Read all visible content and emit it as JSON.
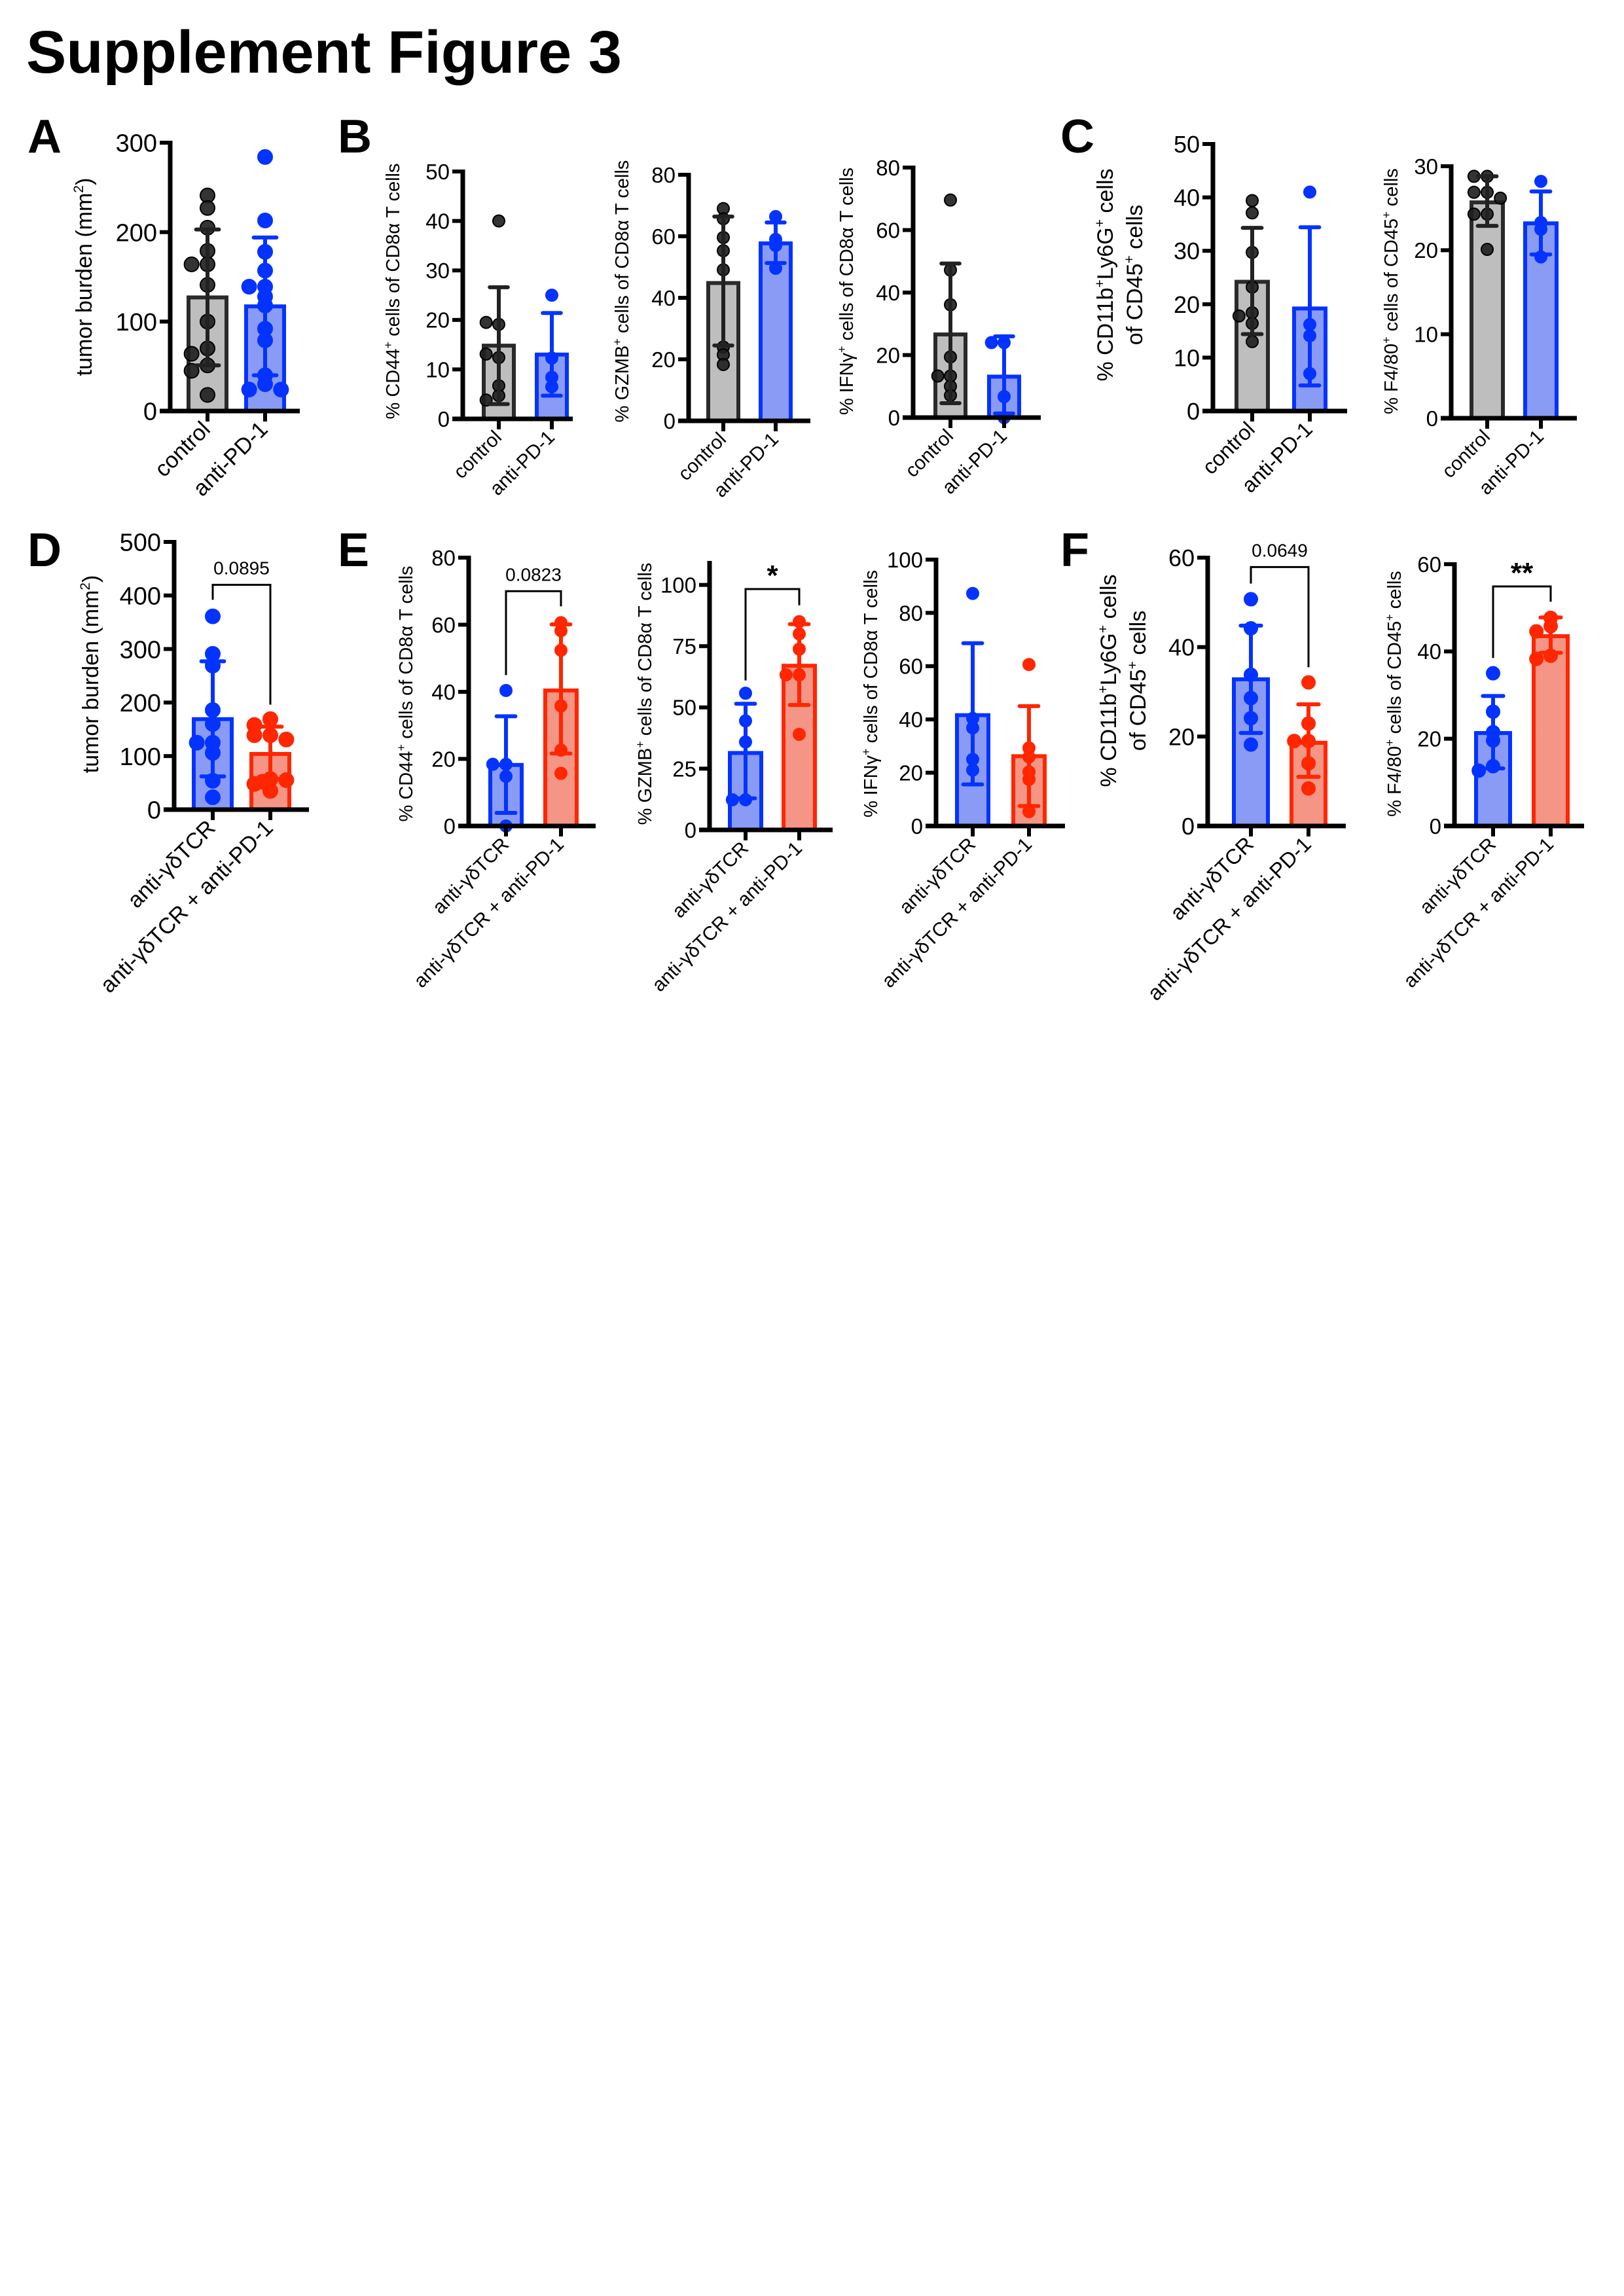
{
  "title": "Supplement Figure 3",
  "colors": {
    "axis": "#000000",
    "control_fill": "#bebebe",
    "control_stroke": "#2a2a2a",
    "control_point": "#1e1e1e",
    "blue_fill": "#8a9bf5",
    "blue_stroke": "#0433ff",
    "blue_point": "#0433ff",
    "red_fill": "#f59585",
    "red_stroke": "#ff2600",
    "red_point": "#ff2600"
  },
  "panels": [
    {
      "letter": "A"
    },
    {
      "letter": "B"
    },
    {
      "letter": "C"
    },
    {
      "letter": "D"
    },
    {
      "letter": "E"
    },
    {
      "letter": "F"
    }
  ],
  "chart_data": [
    {
      "id": "A",
      "type": "bar",
      "ylabel_parts": [
        "tumor burden (mm",
        "2",
        ")"
      ],
      "ylim": [
        0,
        300
      ],
      "yticks": [
        "0",
        "100",
        "200",
        "300"
      ],
      "categories": [
        "control",
        "anti-PD-1"
      ],
      "series": [
        {
          "name": "control",
          "style": "control",
          "mean": 127,
          "sd": [
            51,
            203
          ],
          "points": [
            241,
            227,
            205,
            179,
            164,
            164,
            141,
            100,
            70,
            64,
            51,
            45,
            18
          ]
        },
        {
          "name": "anti-PD-1",
          "style": "blue",
          "mean": 117,
          "sd": [
            40,
            194
          ],
          "points": [
            284,
            213,
            178,
            157,
            139,
            139,
            128,
            118,
            92,
            79,
            40,
            30,
            24,
            24
          ]
        }
      ]
    },
    {
      "id": "B1",
      "type": "bar",
      "ylabel_parts": [
        "% CD44",
        "+",
        " cells of CD8α T cells"
      ],
      "ylim": [
        0,
        50
      ],
      "yticks": [
        "0",
        "10",
        "20",
        "30",
        "40",
        "50"
      ],
      "categories": [
        "control",
        "anti-PD-1"
      ],
      "series": [
        {
          "name": "control",
          "style": "control",
          "mean": 14.8,
          "sd": [
            3.0,
            26.6
          ],
          "points": [
            40.0,
            19.1,
            19.5,
            12.4,
            13.1,
            6.7,
            4.7,
            3.8
          ]
        },
        {
          "name": "anti-PD-1",
          "style": "blue",
          "mean": 13.0,
          "sd": [
            4.7,
            21.4
          ],
          "points": [
            25.0,
            12.3,
            8.4,
            6.5
          ]
        }
      ]
    },
    {
      "id": "B2",
      "type": "bar",
      "ylabel_parts": [
        "% GZMB",
        "+",
        " cells of CD8α T cells"
      ],
      "ylim": [
        0,
        80
      ],
      "yticks": [
        "0",
        "20",
        "40",
        "60",
        "80"
      ],
      "categories": [
        "control",
        "anti-PD-1"
      ],
      "series": [
        {
          "name": "control",
          "style": "control",
          "mean": 44.8,
          "sd": [
            24.5,
            66.4
          ],
          "points": [
            69.0,
            65.7,
            59.6,
            55.3,
            49.1,
            24.0,
            21.5,
            18.3
          ]
        },
        {
          "name": "anti-PD-1",
          "style": "blue",
          "mean": 57.7,
          "sd": [
            51.3,
            64.5
          ],
          "points": [
            66.4,
            59.0,
            57.0,
            49.6
          ]
        }
      ]
    },
    {
      "id": "B3",
      "type": "bar",
      "ylabel_parts": [
        "% IFNγ",
        "+",
        " cells of CD8α T cells"
      ],
      "ylim": [
        0,
        80
      ],
      "yticks": [
        "0",
        "20",
        "40",
        "60",
        "80"
      ],
      "categories": [
        "control",
        "anti-PD-1"
      ],
      "series": [
        {
          "name": "control",
          "style": "control",
          "mean": 26.6,
          "sd": [
            4.6,
            49.3
          ],
          "points": [
            69.6,
            47.2,
            36.1,
            19.4,
            13.3,
            13.3,
            10.0,
            7.1
          ]
        },
        {
          "name": "anti-PD-1",
          "style": "blue",
          "mean": 13.1,
          "sd": [
            1.3,
            26.0
          ],
          "points": [
            24.0,
            24.0,
            6.7,
            0.0
          ]
        }
      ]
    },
    {
      "id": "C1",
      "type": "bar",
      "ylabel_parts": [
        "% CD11b",
        "+",
        "Ly6G",
        "+",
        " cells"
      ],
      "ylabel2_parts": [
        "of CD45",
        "+",
        " cells"
      ],
      "ylim": [
        0,
        50
      ],
      "yticks": [
        "0",
        "10",
        "20",
        "30",
        "40",
        "50"
      ],
      "categories": [
        "control",
        "anti-PD-1"
      ],
      "series": [
        {
          "name": "control",
          "style": "control",
          "mean": 24.2,
          "sd": [
            14.4,
            34.3
          ],
          "points": [
            39.4,
            37.1,
            29.7,
            23.2,
            18.4,
            17.8,
            16.4,
            13.0
          ]
        },
        {
          "name": "anti-PD-1",
          "style": "blue",
          "mean": 19.2,
          "sd": [
            4.8,
            34.4
          ],
          "points": [
            41.0,
            16.2,
            14.1,
            7.0
          ]
        }
      ]
    },
    {
      "id": "C2",
      "type": "bar",
      "ylabel_parts": [
        "% F4/80",
        "+",
        " cells of CD45",
        "+",
        " cells"
      ],
      "ylim": [
        0,
        30
      ],
      "yticks": [
        "0",
        "10",
        "20",
        "30"
      ],
      "categories": [
        "control",
        "anti-PD-1"
      ],
      "series": [
        {
          "name": "control",
          "style": "control",
          "mean": 25.7,
          "sd": [
            22.9,
            28.8
          ],
          "points": [
            28.8,
            28.8,
            26.9,
            26.9,
            26.2,
            24.3,
            24.3,
            20.1
          ]
        },
        {
          "name": "anti-PD-1",
          "style": "blue",
          "mean": 23.2,
          "sd": [
            19.5,
            27.0
          ],
          "points": [
            28.2,
            23.3,
            22.5,
            19.2
          ]
        }
      ]
    },
    {
      "id": "D",
      "type": "bar",
      "ylabel_parts": [
        "tumor burden (mm",
        "2",
        ")"
      ],
      "ylim": [
        0,
        500
      ],
      "yticks": [
        "0",
        "100",
        "200",
        "300",
        "400",
        "500"
      ],
      "categories": [
        "anti-γδTCR",
        "anti-γδTCR + anti-PD-1"
      ],
      "significance": {
        "label": "0.0895",
        "bracket_top": 420,
        "left_end": 392,
        "right_end": 196
      },
      "series": [
        {
          "name": "anti-γδTCR",
          "style": "blue",
          "mean": 169,
          "sd": [
            62,
            277
          ],
          "points": [
            361,
            291,
            269,
            186,
            160,
            125,
            125,
            106,
            54,
            23
          ]
        },
        {
          "name": "anti-γδTCR + anti-PD-1",
          "style": "red",
          "mean": 104,
          "sd": [
            57,
            155
          ],
          "points": [
            169,
            158,
            139,
            139,
            131,
            57,
            48,
            35,
            55,
            52
          ]
        }
      ]
    },
    {
      "id": "E1",
      "type": "bar",
      "ylabel_parts": [
        "% CD44",
        "+",
        " cells of CD8α T cells"
      ],
      "ylim": [
        0,
        80
      ],
      "yticks": [
        "0",
        "20",
        "40",
        "60",
        "80"
      ],
      "categories": [
        "anti-γδTCR",
        "anti-γδTCR + anti-PD-1"
      ],
      "significance": {
        "label": "0.0823",
        "bracket_top": 70,
        "left_end": 45,
        "right_end": 65.5
      },
      "series": [
        {
          "name": "anti-γδTCR",
          "style": "blue",
          "mean": 18.2,
          "sd": [
            3.9,
            32.7
          ],
          "points": [
            40.4,
            18.4,
            18.4,
            14.8,
            0.0
          ]
        },
        {
          "name": "anti-γδTCR + anti-PD-1",
          "style": "red",
          "mean": 40.4,
          "sd": [
            21.6,
            60.1
          ],
          "points": [
            60.6,
            58.2,
            52.4,
            35.8,
            22.6,
            15.7
          ]
        }
      ]
    },
    {
      "id": "E2",
      "type": "bar",
      "ylabel_parts": [
        "% GZMB",
        "+",
        " cells of CD8α T cells"
      ],
      "ylim": [
        0,
        109
      ],
      "yticks": [
        "0",
        "25",
        "50",
        "75",
        "100"
      ],
      "categories": [
        "anti-γδTCR",
        "anti-γδTCR + anti-PD-1"
      ],
      "significance": {
        "label": "*",
        "bracket_top": 98.3,
        "left_end": 61,
        "right_end": 91.7
      },
      "series": [
        {
          "name": "anti-γδTCR",
          "style": "blue",
          "mean": 31.4,
          "sd": [
            12.9,
            51.5
          ],
          "points": [
            55.8,
            44.5,
            35.9,
            12.3,
            12.3
          ]
        },
        {
          "name": "anti-γδTCR + anti-PD-1",
          "style": "red",
          "mean": 67.0,
          "sd": [
            51.0,
            84.0
          ],
          "points": [
            85.0,
            80.0,
            73.8,
            63.3,
            63.3,
            39.0
          ]
        }
      ]
    },
    {
      "id": "E3",
      "type": "bar",
      "ylabel_parts": [
        "% IFNγ",
        "+",
        " cells of CD8α T cells"
      ],
      "ylim": [
        0,
        100
      ],
      "yticks": [
        "0",
        "20",
        "40",
        "60",
        "80",
        "100"
      ],
      "categories": [
        "anti-γδTCR",
        "anti-γδTCR + anti-PD-1"
      ],
      "series": [
        {
          "name": "anti-γδTCR",
          "style": "blue",
          "mean": 41.6,
          "sd": [
            15.6,
            68.6
          ],
          "points": [
            87.3,
            40.4,
            36.8,
            25.0,
            21.0
          ]
        },
        {
          "name": "anti-γδTCR + anti-PD-1",
          "style": "red",
          "mean": 26.2,
          "sd": [
            7.5,
            45.0
          ],
          "points": [
            60.6,
            29.3,
            25.9,
            20.3,
            17.5,
            5.4
          ]
        }
      ]
    },
    {
      "id": "F1",
      "type": "bar",
      "ylabel_parts": [
        "% CD11b",
        "+",
        "Ly6G",
        "+",
        " cells"
      ],
      "ylabel2_parts": [
        "of CD45",
        "+",
        " cells"
      ],
      "ylim": [
        0,
        60
      ],
      "yticks": [
        "0",
        "20",
        "40",
        "60"
      ],
      "categories": [
        "anti-γδTCR",
        "anti-γδTCR + anti-PD-1"
      ],
      "significance": {
        "label": "0.0649",
        "bracket_top": 57.9,
        "left_end": 54.2,
        "right_end": 35.5
      },
      "series": [
        {
          "name": "anti-γδTCR",
          "style": "blue",
          "mean": 32.8,
          "sd": [
            20.8,
            44.8
          ],
          "points": [
            50.7,
            44.2,
            33.8,
            28.6,
            24.1,
            18.2
          ]
        },
        {
          "name": "anti-γδTCR + anti-PD-1",
          "style": "red",
          "mean": 18.6,
          "sd": [
            11.0,
            27.2
          ],
          "points": [
            32.1,
            22.9,
            19.0,
            19.0,
            14.0,
            8.4
          ]
        }
      ]
    },
    {
      "id": "F2",
      "type": "bar",
      "ylabel_parts": [
        "% F4/80",
        "+",
        " cells of CD45",
        "+",
        " cells"
      ],
      "ylim": [
        0,
        60
      ],
      "yticks": [
        "0",
        "20",
        "40",
        "60"
      ],
      "categories": [
        "anti-γδTCR",
        "anti-γδTCR + anti-PD-1"
      ],
      "significance": {
        "label": "**",
        "bracket_top": 54.9,
        "left_end": 38.5,
        "right_end": 51.4
      },
      "series": [
        {
          "name": "anti-γδTCR",
          "style": "blue",
          "mean": 21.3,
          "sd": [
            13.2,
            29.8
          ],
          "points": [
            35.0,
            26.2,
            21.5,
            19.6,
            13.7,
            12.7
          ]
        },
        {
          "name": "anti-γδTCR + anti-PD-1",
          "style": "red",
          "mean": 43.5,
          "sd": [
            39.7,
            47.8
          ],
          "points": [
            47.7,
            45.8,
            44.6,
            39.0,
            38.3
          ]
        }
      ]
    }
  ]
}
